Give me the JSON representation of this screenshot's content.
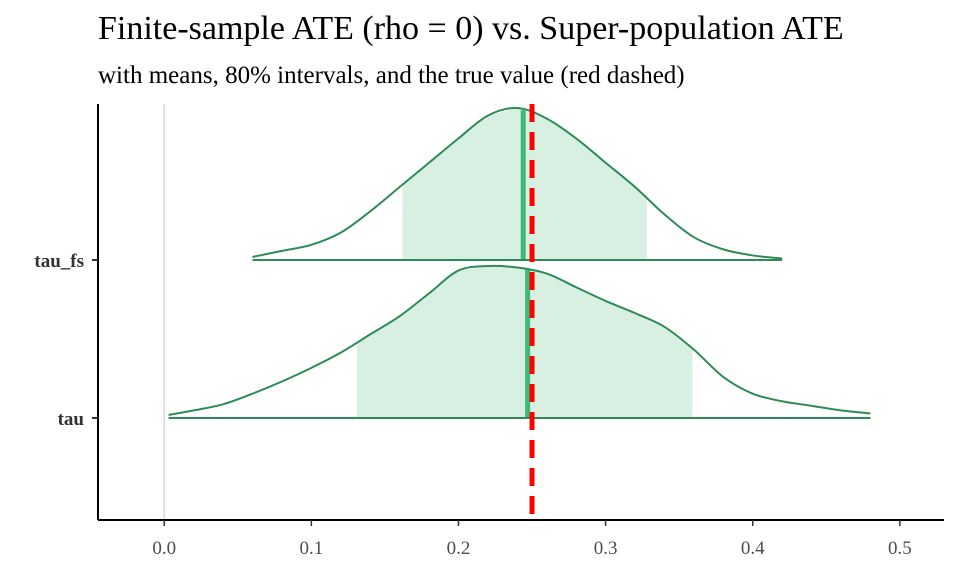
{
  "chart_data": {
    "type": "area",
    "title": "Finite-sample ATE (rho = 0) vs. Super-population ATE",
    "subtitle": "with means, 80% intervals, and the true value (red dashed)",
    "xlabel": "",
    "ylabel": "",
    "xlim": [
      -0.045,
      0.53
    ],
    "x_ticks": [
      "0.0",
      "0.1",
      "0.2",
      "0.3",
      "0.4",
      "0.5"
    ],
    "grid": false,
    "true_value": 0.25,
    "colors": {
      "outline": "#2e8b57",
      "interval_fill": "#d8f0e2",
      "mean_line": "#3dbb74",
      "true_line": "#ff0000",
      "zero_line": "#d9d9d9"
    },
    "series": [
      {
        "name": "tau_fs",
        "mean": 0.244,
        "interval_80": [
          0.162,
          0.328
        ],
        "density": {
          "x": [
            0.06,
            0.08,
            0.1,
            0.12,
            0.14,
            0.16,
            0.18,
            0.2,
            0.22,
            0.24,
            0.26,
            0.28,
            0.3,
            0.32,
            0.34,
            0.36,
            0.38,
            0.4,
            0.42
          ],
          "y": [
            0.02,
            0.06,
            0.1,
            0.18,
            0.32,
            0.48,
            0.64,
            0.8,
            0.95,
            1.0,
            0.93,
            0.8,
            0.64,
            0.48,
            0.3,
            0.15,
            0.07,
            0.03,
            0.01
          ]
        }
      },
      {
        "name": "tau",
        "mean": 0.247,
        "interval_80": [
          0.131,
          0.359
        ],
        "density": {
          "x": [
            0.003,
            0.02,
            0.04,
            0.06,
            0.08,
            0.1,
            0.12,
            0.14,
            0.16,
            0.18,
            0.2,
            0.22,
            0.24,
            0.26,
            0.28,
            0.3,
            0.32,
            0.34,
            0.36,
            0.38,
            0.4,
            0.42,
            0.44,
            0.46,
            0.48
          ],
          "y": [
            0.02,
            0.05,
            0.09,
            0.16,
            0.24,
            0.33,
            0.43,
            0.55,
            0.67,
            0.82,
            0.97,
            1.0,
            0.99,
            0.95,
            0.86,
            0.77,
            0.69,
            0.6,
            0.45,
            0.27,
            0.16,
            0.11,
            0.08,
            0.05,
            0.03
          ]
        }
      }
    ]
  }
}
